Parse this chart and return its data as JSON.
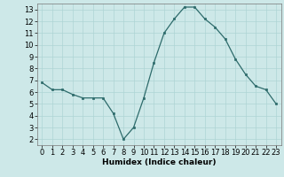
{
  "x": [
    0,
    1,
    2,
    3,
    4,
    5,
    6,
    7,
    8,
    9,
    10,
    11,
    12,
    13,
    14,
    15,
    16,
    17,
    18,
    19,
    20,
    21,
    22,
    23
  ],
  "y": [
    6.8,
    6.2,
    6.2,
    5.8,
    5.5,
    5.5,
    5.5,
    4.2,
    2.0,
    3.0,
    5.5,
    8.5,
    11.0,
    12.2,
    13.2,
    13.2,
    12.2,
    11.5,
    10.5,
    8.8,
    7.5,
    6.5,
    6.2,
    5.0
  ],
  "xlabel": "Humidex (Indice chaleur)",
  "xlim": [
    -0.5,
    23.5
  ],
  "ylim": [
    1.5,
    13.5
  ],
  "line_color": "#2d6b6b",
  "marker_color": "#2d6b6b",
  "bg_color": "#cde8e8",
  "grid_color": "#aed4d4",
  "yticks": [
    2,
    3,
    4,
    5,
    6,
    7,
    8,
    9,
    10,
    11,
    12,
    13
  ],
  "xticks": [
    0,
    1,
    2,
    3,
    4,
    5,
    6,
    7,
    8,
    9,
    10,
    11,
    12,
    13,
    14,
    15,
    16,
    17,
    18,
    19,
    20,
    21,
    22,
    23
  ],
  "xlabel_fontsize": 6.5,
  "tick_fontsize": 6.0
}
